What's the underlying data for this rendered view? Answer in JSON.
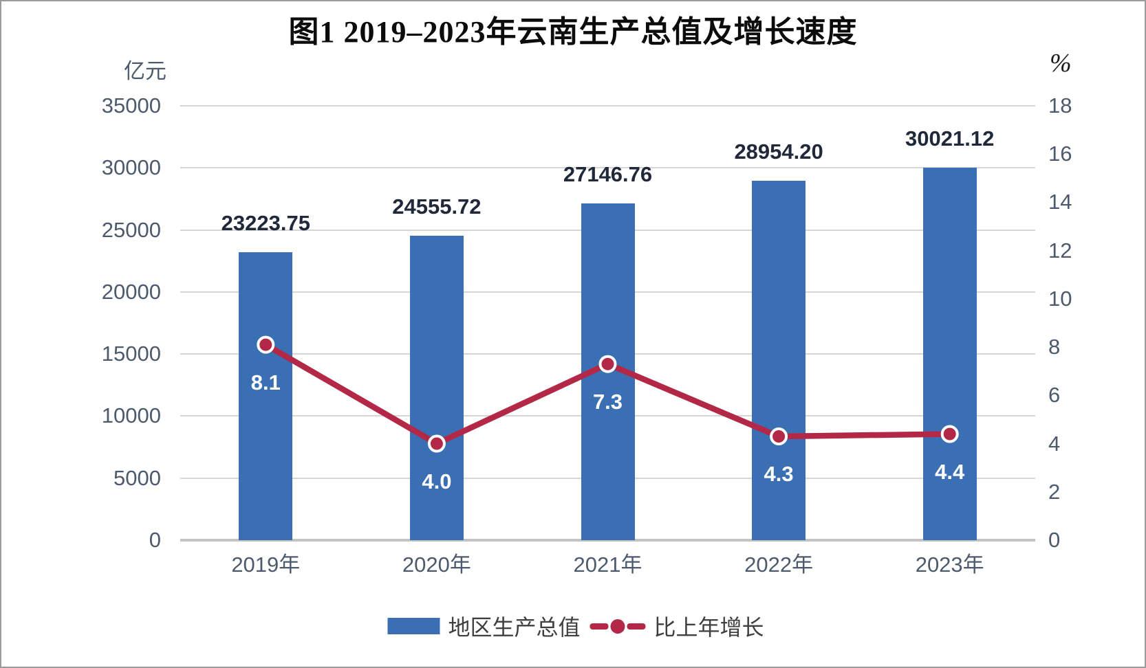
{
  "title": "图1 2019–2023年云南生产总值及增长速度",
  "left_axis": {
    "unit": "亿元",
    "ticks": [
      "0",
      "5000",
      "10000",
      "15000",
      "20000",
      "25000",
      "30000",
      "35000"
    ],
    "max": 35000
  },
  "right_axis": {
    "unit": "%",
    "ticks": [
      "0",
      "2",
      "4",
      "6",
      "8",
      "10",
      "12",
      "14",
      "16",
      "18"
    ],
    "max": 18
  },
  "chart_data": {
    "type": "bar+line",
    "title": "图1 2019–2023年云南生产总值及增长速度",
    "categories": [
      "2019年",
      "2020年",
      "2021年",
      "2022年",
      "2023年"
    ],
    "series": [
      {
        "name": "地区生产总值",
        "type": "bar",
        "axis": "left",
        "unit": "亿元",
        "values": [
          23223.75,
          24555.72,
          27146.76,
          28954.2,
          30021.12
        ],
        "value_labels": [
          "23223.75",
          "24555.72",
          "27146.76",
          "28954.20",
          "30021.12"
        ],
        "color": "#3b6fb3"
      },
      {
        "name": "比上年增长",
        "type": "line",
        "axis": "right",
        "unit": "%",
        "values": [
          8.1,
          4.0,
          7.3,
          4.3,
          4.4
        ],
        "value_labels": [
          "8.1",
          "4.0",
          "7.3",
          "4.3",
          "4.4"
        ],
        "color": "#b32747"
      }
    ],
    "ylim_left": [
      0,
      35000
    ],
    "ylim_right": [
      0,
      18
    ],
    "grid": true,
    "legend_position": "bottom"
  },
  "legend": [
    {
      "label": "地区生产总值",
      "swatch": "bar",
      "color": "#3b6fb3"
    },
    {
      "label": "比上年增长",
      "swatch": "line-dot",
      "color": "#b32747"
    }
  ],
  "colors": {
    "bar": "#3b6fb3",
    "line": "#b32747",
    "gridline": "#d6d6d6",
    "axis_baseline": "#c3c3c3",
    "axis_text": "#4c5a6b",
    "bar_label_text": "#20293a",
    "point_label_text": "#ffffff",
    "title_text": "#0c0c0c"
  }
}
